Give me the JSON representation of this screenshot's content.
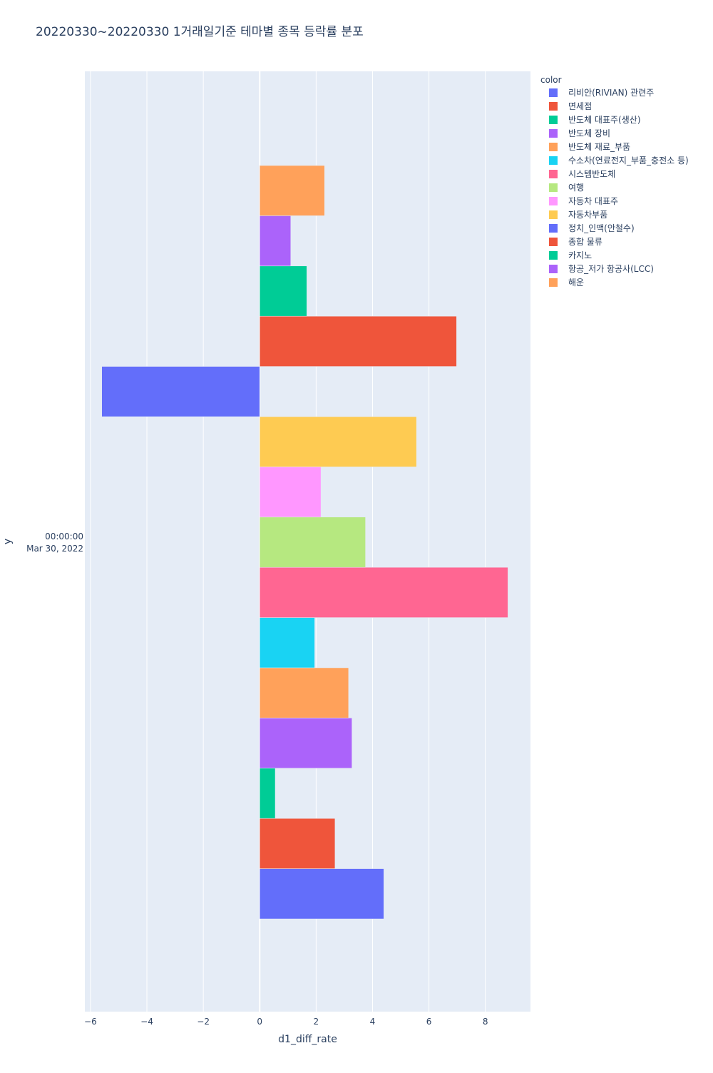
{
  "chart_data": {
    "type": "bar",
    "orientation": "horizontal",
    "title": "20220330~20220330 1거래일기준 테마별 종목 등락률 분포",
    "xlabel": "d1_diff_rate",
    "ylabel": "y",
    "category_label_time": "00:00:00",
    "category_label_date": "Mar 30, 2022",
    "xlim": [
      -6.2,
      9.6
    ],
    "xticks": [
      -6,
      -4,
      -2,
      0,
      2,
      4,
      6,
      8
    ],
    "xtick_labels": [
      "−6",
      "−4",
      "−2",
      "0",
      "2",
      "4",
      "6",
      "8"
    ],
    "grid": true,
    "legend_title": "color",
    "legend_position": "top-right",
    "series": [
      {
        "name": "리비안(RIVIAN) 관련주",
        "value": 4.4,
        "color": "#636efa"
      },
      {
        "name": "면세점",
        "value": 2.67,
        "color": "#EF553B"
      },
      {
        "name": "반도체 대표주(생산)",
        "value": 0.55,
        "color": "#00cc96"
      },
      {
        "name": "반도체 장비",
        "value": 3.27,
        "color": "#ab63fa"
      },
      {
        "name": "반도체 재료_부품",
        "value": 3.15,
        "color": "#FFA15A"
      },
      {
        "name": "수소차(연료전지_부품_충전소 등)",
        "value": 1.95,
        "color": "#19d3f3"
      },
      {
        "name": "시스템반도체",
        "value": 8.8,
        "color": "#FF6692"
      },
      {
        "name": "여행",
        "value": 3.75,
        "color": "#B6E880"
      },
      {
        "name": "자동차 대표주",
        "value": 2.17,
        "color": "#FF97FF"
      },
      {
        "name": "자동차부품",
        "value": 5.56,
        "color": "#FECB52"
      },
      {
        "name": "정치_인맥(안철수)",
        "value": -5.6,
        "color": "#636efa"
      },
      {
        "name": "종합 물류",
        "value": 6.98,
        "color": "#EF553B"
      },
      {
        "name": "카지노",
        "value": 1.67,
        "color": "#00cc96"
      },
      {
        "name": "항공_저가 항공사(LCC)",
        "value": 1.1,
        "color": "#ab63fa"
      },
      {
        "name": "해운",
        "value": 2.3,
        "color": "#FFA15A"
      }
    ]
  }
}
